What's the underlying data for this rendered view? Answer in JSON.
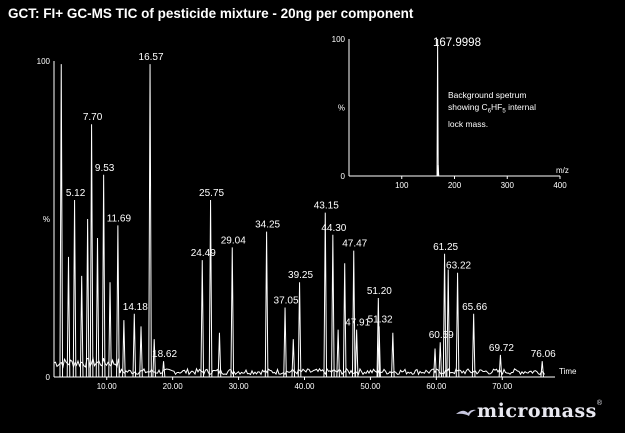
{
  "title": "GCT: FI+ GC-MS TIC of pesticide mixture - 20ng per component",
  "chart_data": [
    {
      "type": "line",
      "name": "main-tic",
      "xlabel": "Time",
      "ylabel": "%",
      "xlim": [
        2,
        78
      ],
      "ylim": [
        0,
        100
      ],
      "x_ticks": [
        "10.00",
        "20.00",
        "30.00",
        "40.00",
        "50.00",
        "60.00",
        "70.00"
      ],
      "x_tick_values": [
        10,
        20,
        30,
        40,
        50,
        60,
        70
      ],
      "y_ticks": [
        "100",
        "%",
        "0"
      ],
      "peaks": [
        {
          "x": 3.1,
          "y": 99,
          "label": ""
        },
        {
          "x": 4.2,
          "y": 38,
          "label": ""
        },
        {
          "x": 5.12,
          "y": 56,
          "label": "5.12"
        },
        {
          "x": 6.2,
          "y": 32,
          "label": ""
        },
        {
          "x": 7.1,
          "y": 50,
          "label": ""
        },
        {
          "x": 7.7,
          "y": 80,
          "label": "7.70"
        },
        {
          "x": 8.6,
          "y": 44,
          "label": ""
        },
        {
          "x": 9.53,
          "y": 64,
          "label": "9.53"
        },
        {
          "x": 10.5,
          "y": 30,
          "label": ""
        },
        {
          "x": 11.69,
          "y": 48,
          "label": "11.69"
        },
        {
          "x": 12.6,
          "y": 18,
          "label": ""
        },
        {
          "x": 14.18,
          "y": 20,
          "label": "14.18"
        },
        {
          "x": 15.2,
          "y": 16,
          "label": ""
        },
        {
          "x": 16.57,
          "y": 99,
          "label": "16.57"
        },
        {
          "x": 17.2,
          "y": 12,
          "label": ""
        },
        {
          "x": 18.62,
          "y": 5,
          "label": "18.62"
        },
        {
          "x": 24.49,
          "y": 37,
          "label": "24.49"
        },
        {
          "x": 25.75,
          "y": 56,
          "label": "25.75"
        },
        {
          "x": 27.1,
          "y": 14,
          "label": ""
        },
        {
          "x": 29.04,
          "y": 41,
          "label": "29.04"
        },
        {
          "x": 34.25,
          "y": 46,
          "label": "34.25"
        },
        {
          "x": 37.05,
          "y": 22,
          "label": "37.05"
        },
        {
          "x": 38.3,
          "y": 12,
          "label": ""
        },
        {
          "x": 39.25,
          "y": 30,
          "label": "39.25"
        },
        {
          "x": 43.15,
          "y": 52,
          "label": "43.15"
        },
        {
          "x": 44.3,
          "y": 45,
          "label": "44.30"
        },
        {
          "x": 45.1,
          "y": 15,
          "label": ""
        },
        {
          "x": 46.1,
          "y": 36,
          "label": ""
        },
        {
          "x": 47.47,
          "y": 40,
          "label": "47.47"
        },
        {
          "x": 47.91,
          "y": 15,
          "label": "47.91"
        },
        {
          "x": 51.2,
          "y": 25,
          "label": "51.20"
        },
        {
          "x": 51.32,
          "y": 16,
          "label": "51.32"
        },
        {
          "x": 53.4,
          "y": 14,
          "label": ""
        },
        {
          "x": 59.8,
          "y": 9,
          "label": ""
        },
        {
          "x": 60.59,
          "y": 11,
          "label": "60.59"
        },
        {
          "x": 61.25,
          "y": 39,
          "label": "61.25"
        },
        {
          "x": 61.8,
          "y": 34,
          "label": ""
        },
        {
          "x": 63.22,
          "y": 33,
          "label": "63.22"
        },
        {
          "x": 65.66,
          "y": 20,
          "label": "65.66"
        },
        {
          "x": 69.72,
          "y": 7,
          "label": "69.72"
        },
        {
          "x": 76.06,
          "y": 5,
          "label": "76.06"
        }
      ]
    },
    {
      "type": "bar",
      "name": "inset-background-spectrum",
      "xlabel": "m/z",
      "ylabel": "%",
      "xlim": [
        0,
        400
      ],
      "ylim": [
        0,
        100
      ],
      "x_ticks": [
        "100",
        "200",
        "300",
        "400"
      ],
      "x_tick_values": [
        100,
        200,
        300,
        400
      ],
      "y_ticks": [
        "100",
        "%",
        "0"
      ],
      "peaks": [
        {
          "x": 167.9998,
          "y": 100,
          "label": "167.9998"
        },
        {
          "x": 169.0,
          "y": 8,
          "label": ""
        }
      ],
      "annotation_line1": "Background   spetrum",
      "annotation_line2_prefix": "showing C",
      "annotation_sub1": "6",
      "annotation_mid": "HF",
      "annotation_sub2": "5",
      "annotation_line2_suffix": " internal",
      "annotation_line3": "lock mass."
    }
  ],
  "brand": {
    "name": "micromass",
    "mark": "®"
  },
  "colors": {
    "background": "#000000",
    "foreground": "#ffffff"
  }
}
